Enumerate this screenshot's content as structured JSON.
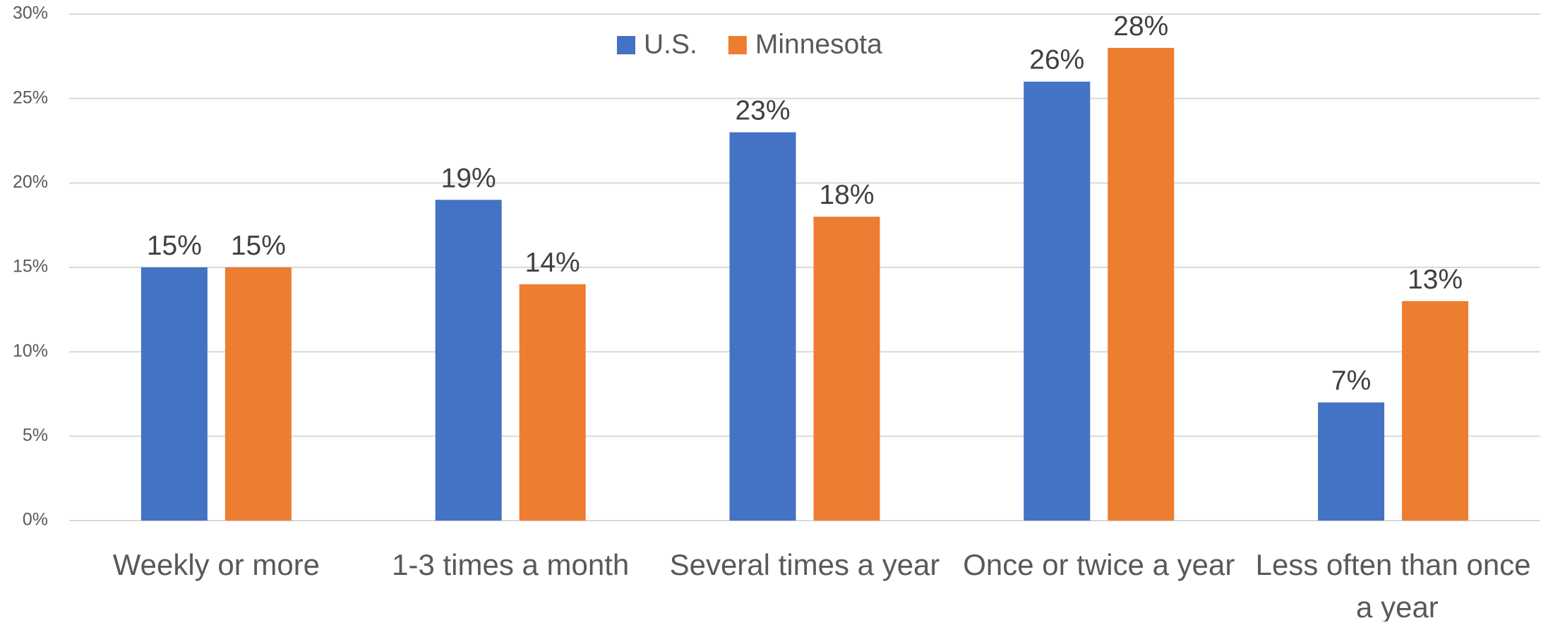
{
  "chart_data": {
    "type": "bar",
    "categories": [
      "Weekly or more",
      "1-3 times a month",
      "Several times a year",
      "Once or twice a year",
      "Less often than once a year"
    ],
    "series": [
      {
        "name": "U.S.",
        "color": "#4472c4",
        "values": [
          15,
          19,
          23,
          26,
          7
        ],
        "value_labels": [
          "15%",
          "19%",
          "23%",
          "26%",
          "7%"
        ]
      },
      {
        "name": "Minnesota",
        "color": "#ed7d31",
        "values": [
          15,
          14,
          18,
          28,
          13
        ],
        "value_labels": [
          "15%",
          "14%",
          "18%",
          "28%",
          "13%"
        ]
      }
    ],
    "ylim": [
      0,
      30
    ],
    "yticks": [
      {
        "value": 0,
        "label": "0%"
      },
      {
        "value": 5,
        "label": "5%"
      },
      {
        "value": 10,
        "label": "10%"
      },
      {
        "value": 15,
        "label": "15%"
      },
      {
        "value": 20,
        "label": "20%"
      },
      {
        "value": 25,
        "label": "25%"
      },
      {
        "value": 30,
        "label": "30%"
      }
    ],
    "grid": true,
    "legend": "top"
  }
}
